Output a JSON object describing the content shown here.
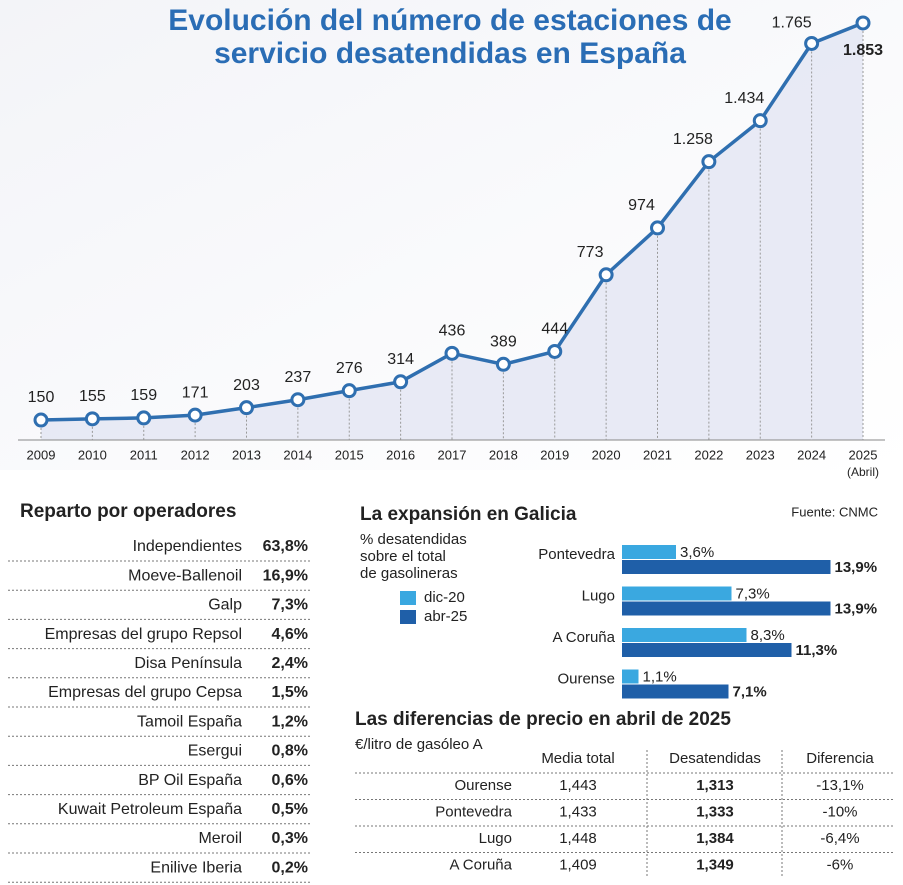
{
  "chart_data": [
    {
      "type": "line",
      "title": "Evolución del número de estaciones de servicio desatendidas en España",
      "categories": [
        "2009",
        "2010",
        "2011",
        "2012",
        "2013",
        "2014",
        "2015",
        "2016",
        "2017",
        "2018",
        "2019",
        "2020",
        "2021",
        "2022",
        "2023",
        "2024",
        "2025"
      ],
      "x_annotation": "(Abril)",
      "values": [
        150,
        155,
        159,
        171,
        203,
        237,
        276,
        314,
        436,
        389,
        444,
        773,
        974,
        1258,
        1434,
        1765,
        1853
      ],
      "value_labels": [
        "150",
        "155",
        "159",
        "171",
        "203",
        "237",
        "276",
        "314",
        "436",
        "389",
        "444",
        "773",
        "974",
        "1.258",
        "1.434",
        "1.765",
        "1.853"
      ],
      "color": "#2f6fb0",
      "ylim": [
        0,
        1900
      ]
    },
    {
      "type": "hbar",
      "title": "La expansión en Galicia",
      "subtitle": "% desatendidas sobre el total de gasolineras",
      "categories": [
        "Pontevedra",
        "Lugo",
        "A Coruña",
        "Ourense"
      ],
      "series": [
        {
          "name": "dic-20",
          "color": "#3aa8e0",
          "values": [
            3.6,
            7.3,
            8.3,
            1.1
          ],
          "value_labels": [
            "3,6%",
            "7,3%",
            "8,3%",
            "1,1%"
          ]
        },
        {
          "name": "abr-25",
          "color": "#1f5fa8",
          "values": [
            13.9,
            13.9,
            11.3,
            7.1
          ],
          "value_labels": [
            "13,9%",
            "13,9%",
            "11,3%",
            "7,1%"
          ]
        }
      ],
      "xlim": [
        0,
        14
      ]
    }
  ],
  "source": "Fuente: CNMC",
  "operators": {
    "title": "Reparto por operadores",
    "rows": [
      {
        "name": "Independientes",
        "share": "63,8%"
      },
      {
        "name": "Moeve-Ballenoil",
        "share": "16,9%"
      },
      {
        "name": "Galp",
        "share": "7,3%"
      },
      {
        "name": "Empresas del grupo Repsol",
        "share": "4,6%"
      },
      {
        "name": "Disa Península",
        "share": "2,4%"
      },
      {
        "name": "Empresas del grupo Cepsa",
        "share": "1,5%"
      },
      {
        "name": "Tamoil España",
        "share": "1,2%"
      },
      {
        "name": "Esergui",
        "share": "0,8%"
      },
      {
        "name": "BP Oil España",
        "share": "0,6%"
      },
      {
        "name": "Kuwait Petroleum España",
        "share": "0,5%"
      },
      {
        "name": "Meroil",
        "share": "0,3%"
      },
      {
        "name": "Enilive Iberia",
        "share": "0,2%"
      }
    ]
  },
  "prices": {
    "title": "Las diferencias de precio en abril de 2025",
    "subtitle": "€/litro de gasóleo A",
    "header": [
      "Media total",
      "Desatendidas",
      "Diferencia"
    ],
    "rows": [
      [
        "Ourense",
        "1,443",
        "1,313",
        "-13,1%"
      ],
      [
        "Pontevedra",
        "1,433",
        "1,333",
        "-10%"
      ],
      [
        "Lugo",
        "1,448",
        "1,384",
        "-6,4%"
      ],
      [
        "A Coruña",
        "1,409",
        "1,349",
        "-6%"
      ]
    ]
  }
}
